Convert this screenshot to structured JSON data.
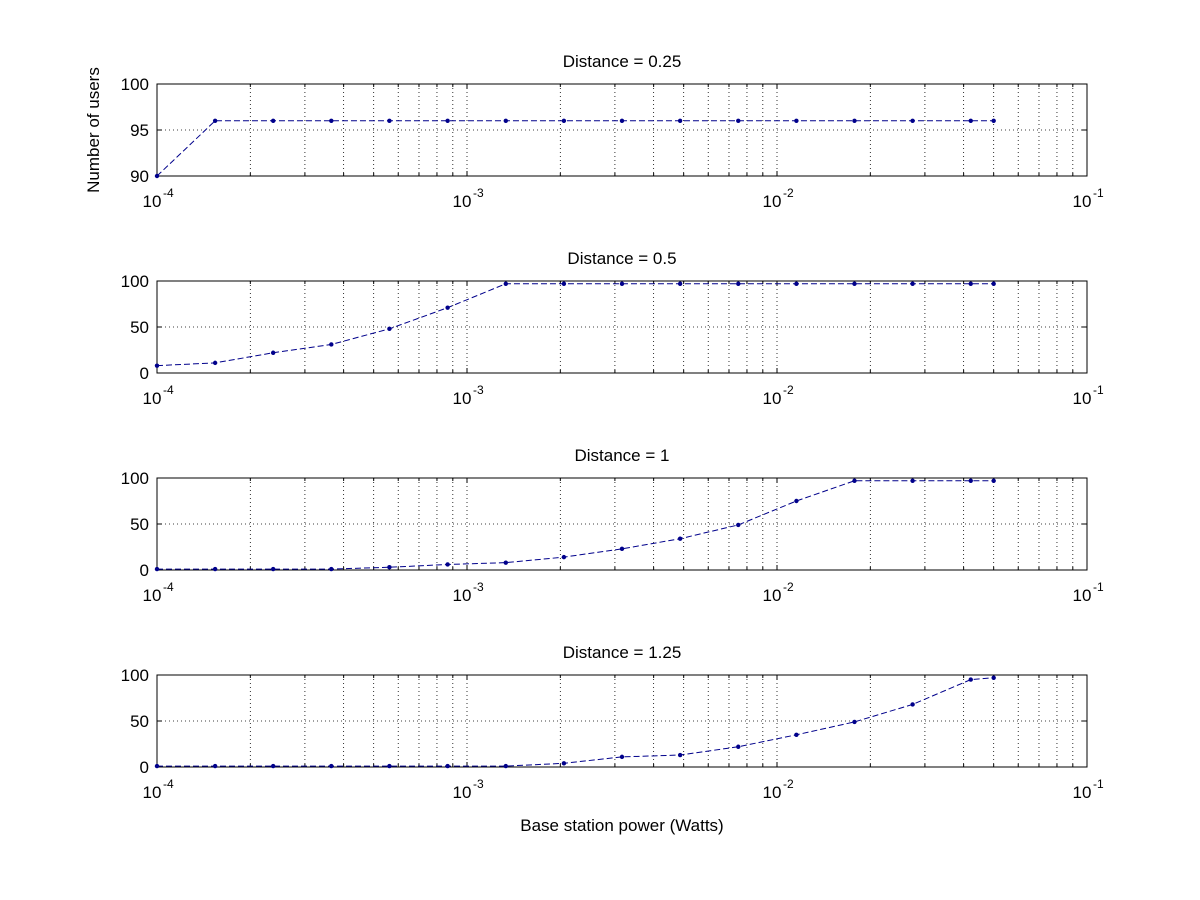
{
  "chart_data": [
    {
      "type": "line",
      "title": "Distance = 0.25",
      "xlabel": "",
      "ylabel": "Number of users",
      "xscale": "log",
      "xlim": [
        0.0001,
        0.1
      ],
      "ylim": [
        90,
        100
      ],
      "xtick_base": "10",
      "xtick_exponents": [
        "-4",
        "-3",
        "-2",
        "-1"
      ],
      "yticks": [
        "90",
        "95",
        "100"
      ],
      "ytick_values": [
        90,
        95,
        100
      ],
      "grid": true,
      "x": [
        0.0001,
        0.000154,
        0.000237,
        0.000365,
        0.000562,
        0.000866,
        0.001334,
        0.002054,
        0.003162,
        0.00487,
        0.0075,
        0.01155,
        0.01778,
        0.02738,
        0.04217,
        0.05
      ],
      "values": [
        90,
        96,
        96,
        96,
        96,
        96,
        96,
        96,
        96,
        96,
        96,
        96,
        96,
        96,
        96,
        96
      ]
    },
    {
      "type": "line",
      "title": "Distance = 0.5",
      "xlabel": "",
      "ylabel": "",
      "xscale": "log",
      "xlim": [
        0.0001,
        0.1
      ],
      "ylim": [
        0,
        100
      ],
      "xtick_base": "10",
      "xtick_exponents": [
        "-4",
        "-3",
        "-2",
        "-1"
      ],
      "yticks": [
        "0",
        "50",
        "100"
      ],
      "ytick_values": [
        0,
        50,
        100
      ],
      "grid": true,
      "x": [
        0.0001,
        0.000154,
        0.000237,
        0.000365,
        0.000562,
        0.000866,
        0.001334,
        0.002054,
        0.003162,
        0.00487,
        0.0075,
        0.01155,
        0.01778,
        0.02738,
        0.04217,
        0.05
      ],
      "values": [
        8,
        11,
        22,
        31,
        48,
        71,
        97,
        97,
        97,
        97,
        97,
        97,
        97,
        97,
        97,
        97
      ]
    },
    {
      "type": "line",
      "title": "Distance = 1",
      "xlabel": "",
      "ylabel": "",
      "xscale": "log",
      "xlim": [
        0.0001,
        0.1
      ],
      "ylim": [
        0,
        100
      ],
      "xtick_base": "10",
      "xtick_exponents": [
        "-4",
        "-3",
        "-2",
        "-1"
      ],
      "yticks": [
        "0",
        "50",
        "100"
      ],
      "ytick_values": [
        0,
        50,
        100
      ],
      "grid": true,
      "x": [
        0.0001,
        0.000154,
        0.000237,
        0.000365,
        0.000562,
        0.000866,
        0.001334,
        0.002054,
        0.003162,
        0.00487,
        0.0075,
        0.01155,
        0.01778,
        0.02738,
        0.04217,
        0.05
      ],
      "values": [
        1,
        1,
        1,
        1,
        3,
        6,
        8,
        14,
        23,
        34,
        49,
        75,
        97,
        97,
        97,
        97
      ]
    },
    {
      "type": "line",
      "title": "Distance = 1.25",
      "xlabel": "Base station power (Watts)",
      "ylabel": "",
      "xscale": "log",
      "xlim": [
        0.0001,
        0.1
      ],
      "ylim": [
        0,
        100
      ],
      "xtick_base": "10",
      "xtick_exponents": [
        "-4",
        "-3",
        "-2",
        "-1"
      ],
      "yticks": [
        "0",
        "50",
        "100"
      ],
      "ytick_values": [
        0,
        50,
        100
      ],
      "grid": true,
      "x": [
        0.0001,
        0.000154,
        0.000237,
        0.000365,
        0.000562,
        0.000866,
        0.001334,
        0.002054,
        0.003162,
        0.00487,
        0.0075,
        0.01155,
        0.01778,
        0.02738,
        0.04217,
        0.05
      ],
      "values": [
        1,
        1,
        1,
        1,
        1,
        1,
        1,
        4,
        11,
        13,
        22,
        35,
        49,
        68,
        95,
        97
      ]
    }
  ],
  "colors": {
    "series": "#00008b",
    "frame": "#000000",
    "background": "#ffffff"
  }
}
